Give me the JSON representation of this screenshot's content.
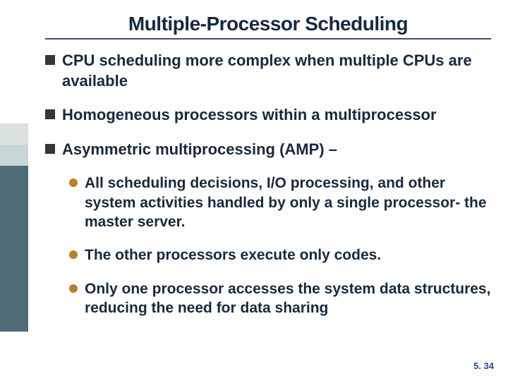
{
  "title": {
    "text": "Multiple-Processor Scheduling",
    "fontsize": 28,
    "color": "#17293d"
  },
  "rule_color": "#3a4f6f",
  "body_color": "#17293d",
  "square_color": "#363636",
  "dot_color": "#b5812a",
  "level1_fontsize": 22,
  "level2_fontsize": 21,
  "bullets": {
    "b0": "CPU scheduling more complex when multiple CPUs are available",
    "b1": "Homogeneous processors within a multiprocessor",
    "b2": "Asymmetric multiprocessing (AMP) –"
  },
  "subs": {
    "s0": "All scheduling decisions, I/O processing, and other system activities handled by only a single processor- the master server.",
    "s1": "The other processors execute only codes.",
    "s2": "Only one processor accesses the system data structures, reducing the need for data sharing"
  },
  "page_number": {
    "text": "5. 34",
    "color": "#2a4d8f",
    "fontsize": 13
  },
  "sidebar": {
    "mid1": "#d9e2e1",
    "mid2": "#c8d6d5",
    "dark": "#4f6b78"
  }
}
